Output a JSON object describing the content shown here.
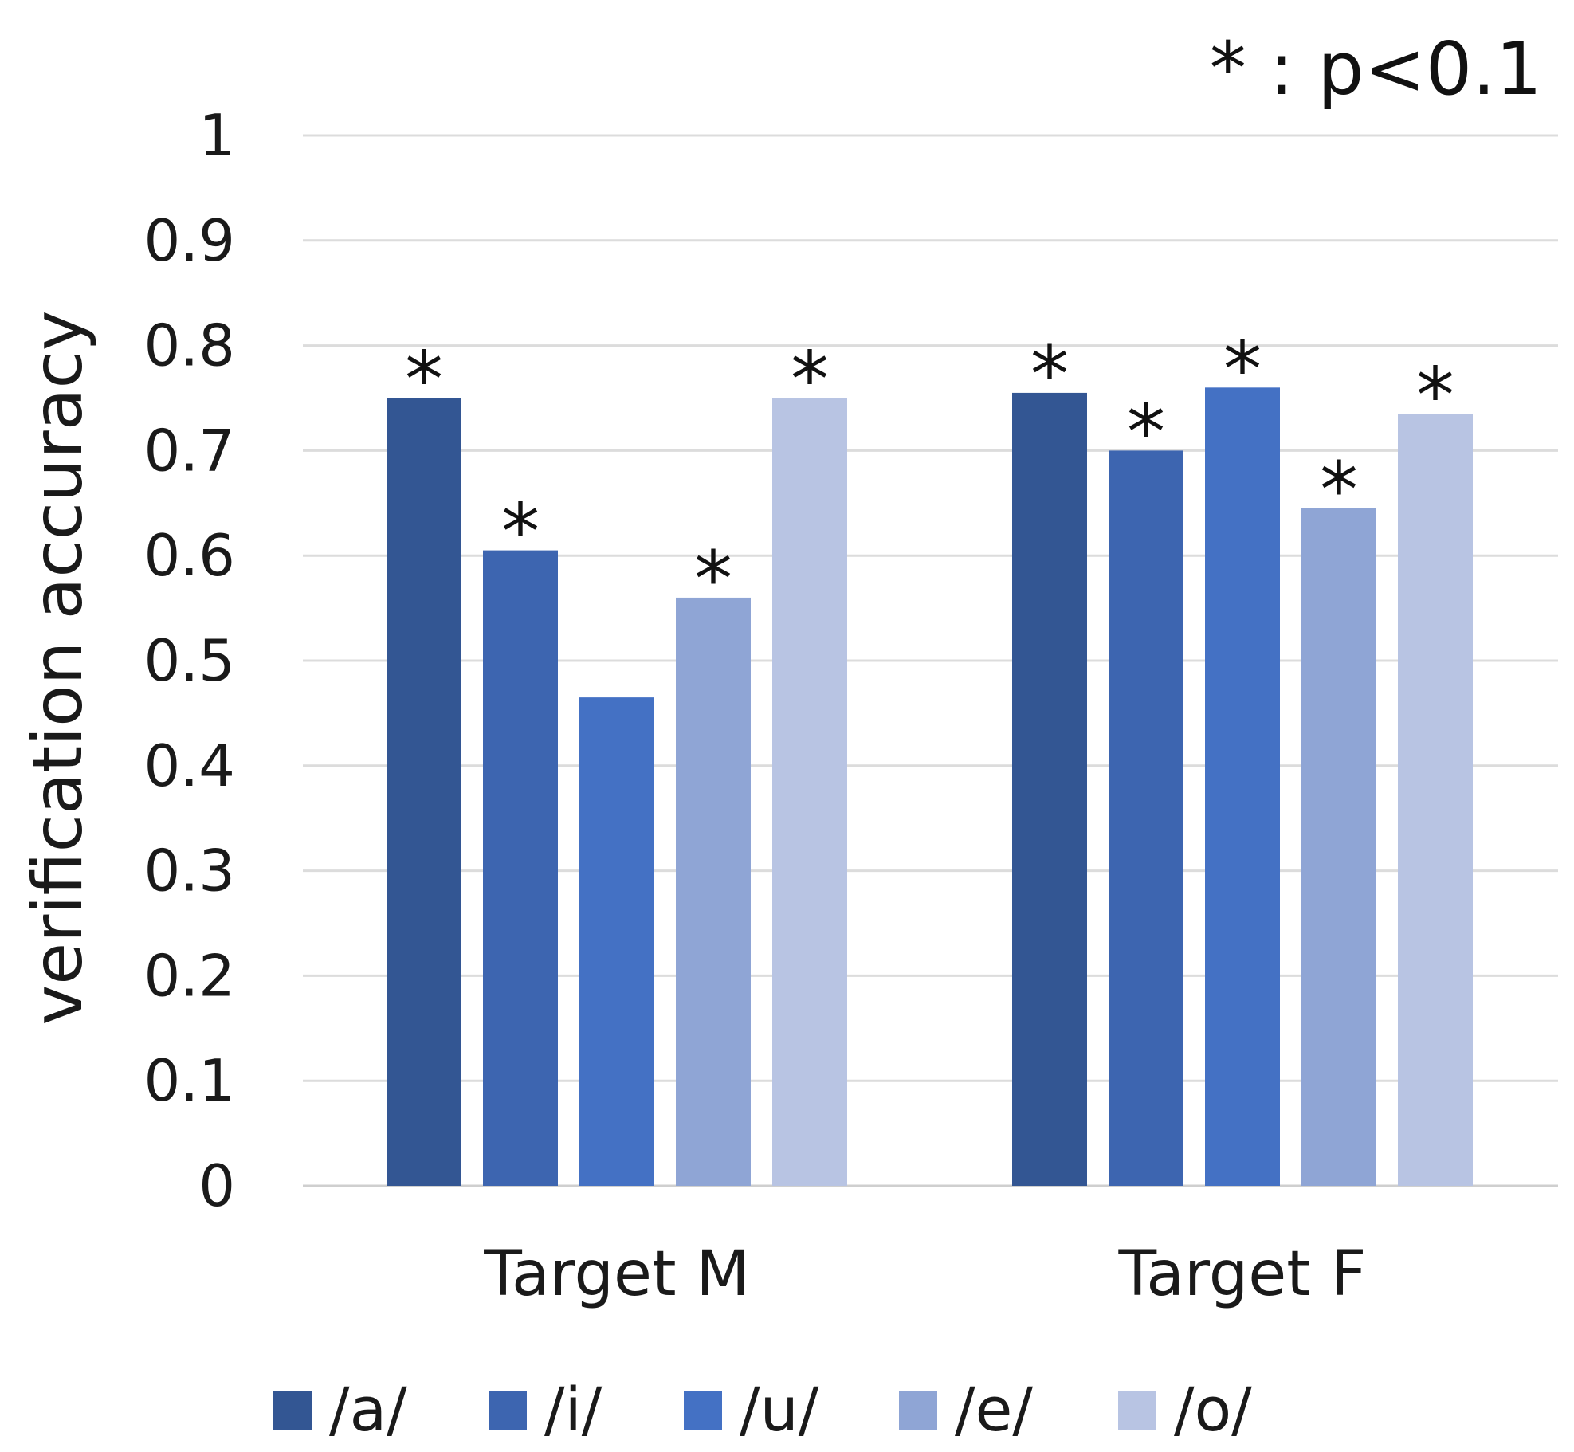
{
  "chart_data": {
    "type": "bar",
    "title": "",
    "xlabel": "",
    "ylabel": "verification accuracy",
    "ylim": [
      0,
      1
    ],
    "yticks": [
      "0",
      "0.1",
      "0.2",
      "0.3",
      "0.4",
      "0.5",
      "0.6",
      "0.7",
      "0.8",
      "0.9",
      "1"
    ],
    "grid": true,
    "legend_position": "bottom",
    "significance_note": "* : p<0.1",
    "significance_marker": "*",
    "categories": [
      "Target M",
      "Target F"
    ],
    "series": [
      {
        "name": "/a/",
        "color": "#335693",
        "values": [
          0.75,
          0.755
        ],
        "significant": [
          true,
          true
        ]
      },
      {
        "name": "/i/",
        "color": "#3d65b0",
        "values": [
          0.605,
          0.7
        ],
        "significant": [
          true,
          true
        ]
      },
      {
        "name": "/u/",
        "color": "#4471c4",
        "values": [
          0.465,
          0.76
        ],
        "significant": [
          false,
          true
        ]
      },
      {
        "name": "/e/",
        "color": "#8fa5d5",
        "values": [
          0.56,
          0.645
        ],
        "significant": [
          true,
          true
        ]
      },
      {
        "name": "/o/",
        "color": "#b8c4e3",
        "values": [
          0.75,
          0.735
        ],
        "significant": [
          true,
          true
        ]
      }
    ]
  }
}
